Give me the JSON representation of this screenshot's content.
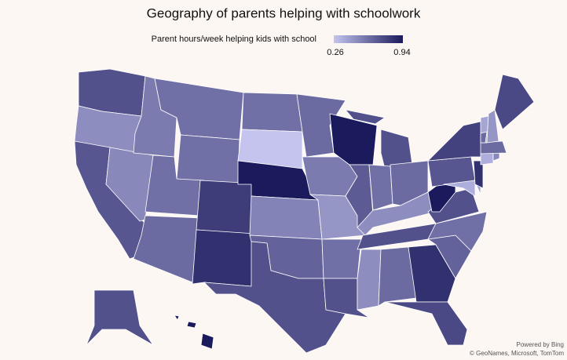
{
  "chart_data": {
    "type": "choropleth",
    "title": "Geography of parents helping with schoolwork",
    "legend_title": "Parent hours/week helping kids with school",
    "scale_min": 0.26,
    "scale_max": 0.94,
    "color_min": "#c4c4ef",
    "color_max": "#1b1a5c",
    "values": [
      0.72,
      0.48,
      0.7,
      0.5,
      0.55,
      0.6,
      0.6,
      0.6,
      0.62,
      0.8,
      0.85,
      0.6,
      0.26,
      0.94,
      0.52,
      0.65,
      0.72,
      0.62,
      0.55,
      0.45,
      0.6,
      0.72,
      0.94,
      0.68,
      0.72,
      0.6,
      0.62,
      0.48,
      0.72,
      0.48,
      0.62,
      0.85,
      0.75,
      0.65,
      0.6,
      0.72,
      0.94,
      0.7,
      0.78,
      0.35,
      0.4,
      0.85,
      0.35,
      0.5,
      0.62,
      0.38,
      0.45,
      0.75,
      0.72,
      0.94,
      0.62
    ],
    "attribution_1": "Powered by Bing",
    "attribution_2": "© GeoNames, Microsoft, TomTom"
  }
}
